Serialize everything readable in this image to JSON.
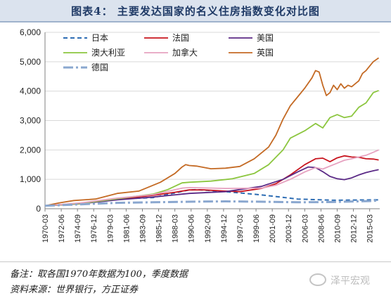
{
  "title": "图表4：  主要发达国家的名义住房指数变化对比图",
  "footer": {
    "note": "备注：取各国1970年数据为100，季度数据",
    "source": "资料来源：世界银行，方正证券",
    "watermark": "泽平宏观"
  },
  "colors": {
    "日本": "#2e6db4",
    "法国": "#c8141e",
    "美国": "#5b2a86",
    "澳大利亚": "#8cc63f",
    "加拿大": "#e6a2c0",
    "英国": "#c46a24",
    "德国": "#8aa7cf",
    "grid": "#d9d9d9",
    "axis": "#808080"
  },
  "chart_data": {
    "type": "line",
    "title": "",
    "xlabel": "",
    "ylabel": "",
    "ylim": [
      0,
      6000
    ],
    "yticks": [
      "0",
      "1,000",
      "2,000",
      "3,000",
      "4,000",
      "5,000",
      "6,000"
    ],
    "xticks": [
      "1970-03",
      "1972-06",
      "1974-09",
      "1976-12",
      "1979-03",
      "1981-06",
      "1983-09",
      "1985-12",
      "1988-03",
      "1990-06",
      "1992-09",
      "1994-12",
      "1997-03",
      "1999-06",
      "2001-09",
      "2003-12",
      "2006-03",
      "2008-06",
      "2010-09",
      "2012-12",
      "2015-03"
    ],
    "xlim": [
      1970.0,
      2016.4
    ],
    "grid": true,
    "legend": "top-left",
    "series": [
      {
        "name": "日本",
        "style": "dashed",
        "x": [
          1970.0,
          1975,
          1980,
          1985,
          1990,
          1991,
          1995,
          2000,
          2005,
          2010,
          2015,
          2016.25
        ],
        "values": [
          100,
          190,
          330,
          380,
          640,
          650,
          580,
          470,
          330,
          290,
          300,
          300
        ]
      },
      {
        "name": "法国",
        "style": "solid",
        "x": [
          1970.0,
          1975,
          1980,
          1985,
          1988,
          1990,
          1992,
          1995,
          1997,
          2000,
          2002,
          2004,
          2006,
          2007.5,
          2008.5,
          2009.5,
          2010.5,
          2011.5,
          2012.5,
          2013.5,
          2014.5,
          2015.5,
          2016.25
        ],
        "values": [
          100,
          180,
          320,
          460,
          560,
          640,
          640,
          600,
          580,
          690,
          850,
          1150,
          1500,
          1700,
          1720,
          1600,
          1730,
          1800,
          1760,
          1750,
          1700,
          1690,
          1660
        ]
      },
      {
        "name": "美国",
        "style": "solid",
        "x": [
          1970.0,
          1975,
          1980,
          1985,
          1990,
          1995,
          2000,
          2003,
          2005,
          2006.5,
          2007.5,
          2008.5,
          2009.5,
          2010.5,
          2011.5,
          2012.5,
          2013.5,
          2014.5,
          2015.5,
          2016.25
        ],
        "values": [
          100,
          170,
          300,
          400,
          520,
          580,
          760,
          1000,
          1250,
          1420,
          1400,
          1260,
          1100,
          1020,
          990,
          1050,
          1150,
          1230,
          1290,
          1330
        ]
      },
      {
        "name": "澳大利亚",
        "style": "solid",
        "x": [
          1970.0,
          1975,
          1980,
          1985,
          1987,
          1989,
          1990,
          1993,
          1996,
          1999,
          2001,
          2003,
          2004,
          2006,
          2007.5,
          2008.5,
          2009.5,
          2010.5,
          2011.5,
          2012.5,
          2013.5,
          2014.5,
          2015.5,
          2016.25
        ],
        "values": [
          100,
          180,
          340,
          500,
          650,
          880,
          900,
          940,
          1020,
          1200,
          1500,
          2000,
          2400,
          2650,
          2900,
          2750,
          3100,
          3200,
          3100,
          3150,
          3450,
          3600,
          3950,
          4020
        ]
      },
      {
        "name": "加拿大",
        "style": "solid",
        "x": [
          1970.0,
          1975,
          1980,
          1985,
          1989,
          1990,
          1995,
          2000,
          2002,
          2004,
          2006,
          2007.5,
          2008.5,
          2009.5,
          2010.5,
          2011.5,
          2012.5,
          2013.5,
          2014.5,
          2015.5,
          2016.25
        ],
        "values": [
          100,
          200,
          360,
          480,
          700,
          720,
          690,
          700,
          800,
          1000,
          1250,
          1400,
          1350,
          1450,
          1550,
          1650,
          1700,
          1760,
          1820,
          1920,
          2000
        ]
      },
      {
        "name": "英国",
        "style": "solid",
        "x": [
          1970.0,
          1972,
          1974,
          1977,
          1980,
          1983,
          1986,
          1988,
          1989,
          1989.5,
          1990,
          1991,
          1993,
          1995,
          1997,
          1999,
          2001,
          2002,
          2003,
          2004,
          2005,
          2006,
          2007,
          2007.5,
          2008,
          2008.5,
          2009,
          2009.5,
          2010,
          2010.5,
          2011,
          2011.5,
          2012,
          2012.5,
          2013,
          2013.5,
          2014,
          2014.5,
          2015,
          2015.5,
          2016.25
        ],
        "values": [
          100,
          200,
          280,
          330,
          520,
          600,
          900,
          1200,
          1420,
          1500,
          1470,
          1450,
          1360,
          1380,
          1440,
          1700,
          2100,
          2500,
          3050,
          3500,
          3800,
          4100,
          4450,
          4700,
          4650,
          4200,
          3850,
          3950,
          4200,
          4050,
          4250,
          4100,
          4200,
          4150,
          4250,
          4350,
          4600,
          4700,
          4850,
          5000,
          5130
        ]
      },
      {
        "name": "德国",
        "style": "dashdot",
        "x": [
          1970.0,
          1975,
          1980,
          1985,
          1990,
          1995,
          2000,
          2005,
          2010,
          2015,
          2016.25
        ],
        "values": [
          100,
          150,
          200,
          220,
          240,
          250,
          240,
          220,
          230,
          260,
          280
        ]
      }
    ]
  }
}
